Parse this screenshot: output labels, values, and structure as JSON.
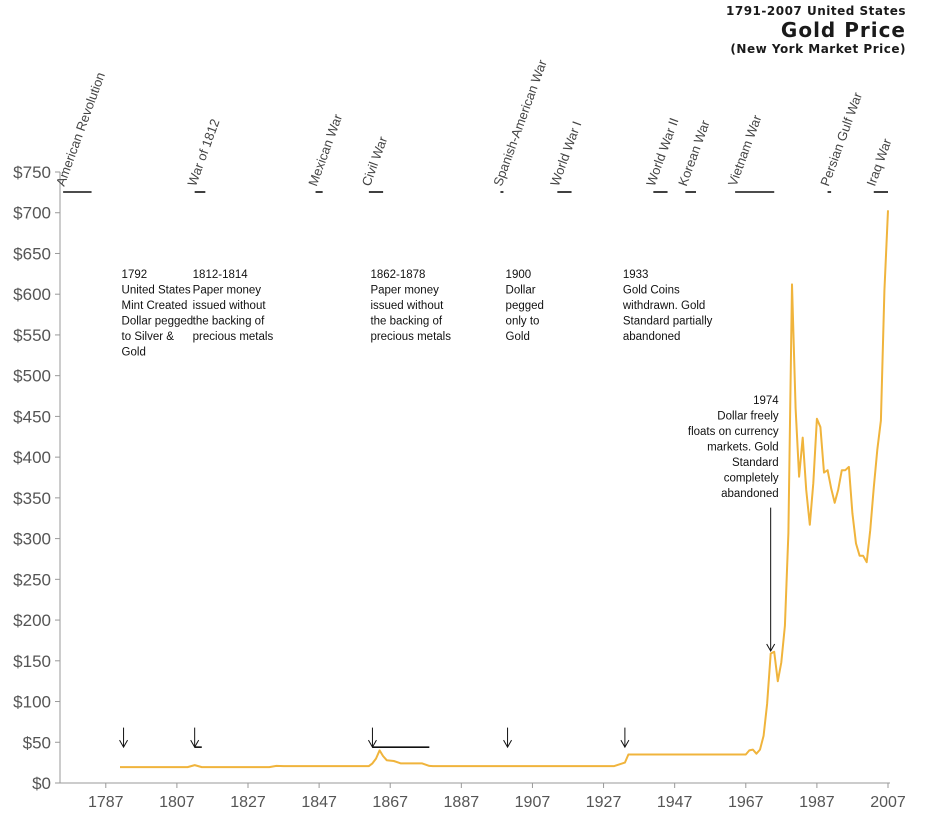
{
  "title": {
    "top": "1791-2007 United States",
    "main": "Gold Price",
    "sub": "(New York Market Price)"
  },
  "colors": {
    "line": "#F0B43C",
    "axis": "#999999",
    "text": "#555555",
    "marker": "#111111"
  },
  "chart_data": {
    "type": "line",
    "xlim": [
      1771,
      2008
    ],
    "ylim": [
      0,
      750
    ],
    "y_ticks": [
      0,
      50,
      100,
      150,
      200,
      250,
      300,
      350,
      400,
      450,
      500,
      550,
      600,
      650,
      700,
      750
    ],
    "y_tick_labels": [
      "$0",
      "$50",
      "$100",
      "$150",
      "$200",
      "$250",
      "$300",
      "$350",
      "$400",
      "$450",
      "$500",
      "$550",
      "$600",
      "$650",
      "$700",
      "$750"
    ],
    "x_ticks": [
      1787,
      1807,
      1827,
      1847,
      1867,
      1887,
      1907,
      1927,
      1947,
      1967,
      1987,
      2007
    ],
    "x_tick_labels": [
      "1787",
      "1807",
      "1827",
      "1847",
      "1867",
      "1887",
      "1907",
      "1927",
      "1947",
      "1967",
      "1987",
      "2007"
    ],
    "grid": false,
    "series": [
      {
        "x": [
          1791,
          1800,
          1810,
          1812,
          1814,
          1820,
          1833,
          1835,
          1837,
          1850,
          1861,
          1862,
          1863,
          1864,
          1865,
          1866,
          1868,
          1870,
          1872,
          1876,
          1878,
          1879,
          1890,
          1900,
          1920,
          1930,
          1933,
          1934,
          1940,
          1950,
          1960,
          1967,
          1968,
          1969,
          1970,
          1971,
          1972,
          1973,
          1974,
          1975,
          1976,
          1977,
          1978,
          1979,
          1980,
          1981,
          1982,
          1983,
          1984,
          1985,
          1986,
          1987,
          1988,
          1989,
          1990,
          1991,
          1992,
          1993,
          1994,
          1995,
          1996,
          1997,
          1998,
          1999,
          2000,
          2001,
          2002,
          2003,
          2004,
          2005,
          2006,
          2007
        ],
        "y": [
          19.5,
          19.5,
          19.5,
          22,
          19.5,
          19.5,
          19.5,
          21,
          20.7,
          20.7,
          20.7,
          24,
          30,
          40,
          33,
          28,
          27,
          24,
          24,
          24,
          21,
          20.7,
          20.7,
          20.7,
          20.7,
          20.7,
          25,
          35,
          35,
          35,
          35,
          35,
          40,
          41,
          36,
          41,
          58,
          97,
          159,
          161,
          125,
          148,
          193,
          307,
          612,
          460,
          376,
          424,
          360,
          317,
          368,
          447,
          437,
          381,
          384,
          362,
          344,
          360,
          384,
          384,
          388,
          331,
          294,
          279,
          279,
          271,
          310,
          363,
          409,
          445,
          604,
          703
        ]
      }
    ],
    "wars": [
      {
        "label": "American Revolution",
        "start": 1775,
        "end": 1783
      },
      {
        "label": "War of 1812",
        "start": 1812,
        "end": 1815
      },
      {
        "label": "Mexican War",
        "start": 1846,
        "end": 1848
      },
      {
        "label": "Civil War",
        "start": 1861,
        "end": 1865
      },
      {
        "label": "Spanish-American War",
        "start": 1898,
        "end": 1898
      },
      {
        "label": "World War I",
        "start": 1914,
        "end": 1918
      },
      {
        "label": "World War II",
        "start": 1941,
        "end": 1945
      },
      {
        "label": "Korean War",
        "start": 1950,
        "end": 1953
      },
      {
        "label": "Vietnam War",
        "start": 1964,
        "end": 1975
      },
      {
        "label": "Persian Gulf War",
        "start": 1990,
        "end": 1991
      },
      {
        "label": "Iraq War",
        "start": 2003,
        "end": 2007
      }
    ],
    "annotations": [
      {
        "x": 1792,
        "lines": [
          "1792",
          "United States",
          "Mint Created",
          "Dollar pegged",
          "to Silver &",
          "Gold"
        ],
        "text_y": 620,
        "arrow_from": 68,
        "arrow_to": 44,
        "align": "left"
      },
      {
        "x": 1812,
        "lines": [
          "1812-1814",
          "Paper money",
          "issued without",
          "the backing of",
          "precious metals"
        ],
        "text_y": 620,
        "arrow_from": 68,
        "arrow_to": 44,
        "align": "left",
        "bar_end": 1814
      },
      {
        "x": 1862,
        "lines": [
          "1862-1878",
          "Paper money",
          "issued without",
          "the backing of",
          "precious metals"
        ],
        "text_y": 620,
        "arrow_from": 68,
        "arrow_to": 44,
        "align": "left",
        "bar_end": 1878
      },
      {
        "x": 1900,
        "lines": [
          "1900",
          "Dollar",
          "pegged",
          "only to",
          "Gold"
        ],
        "text_y": 620,
        "arrow_from": 68,
        "arrow_to": 44,
        "align": "left"
      },
      {
        "x": 1933,
        "lines": [
          "1933",
          "Gold Coins",
          "withdrawn. Gold",
          "Standard partially",
          "abandoned"
        ],
        "text_y": 620,
        "arrow_from": 68,
        "arrow_to": 44,
        "align": "left"
      },
      {
        "x": 1974,
        "lines": [
          "1974",
          "Dollar freely",
          "floats on currency",
          "markets. Gold",
          "Standard",
          "completely",
          "abandoned"
        ],
        "text_y": 465,
        "arrow_from": 338,
        "arrow_to": 162,
        "align": "right"
      }
    ]
  }
}
